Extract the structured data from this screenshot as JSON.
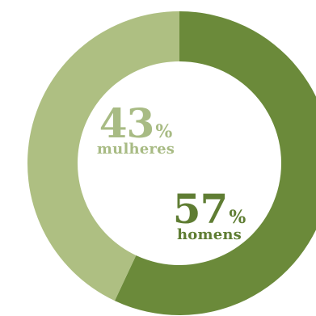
{
  "chart_data": {
    "type": "pie",
    "donut": true,
    "categories": [
      "homens",
      "mulheres"
    ],
    "values": [
      57,
      43
    ],
    "value_suffix": "%",
    "colors": [
      "#6b8a3a",
      "#aebf82"
    ],
    "text_colors": [
      "#5f7d33",
      "#a8bb84"
    ],
    "start_angle_deg": 0,
    "direction": "clockwise",
    "labels": [
      {
        "value": "57",
        "suffix": "%",
        "category": "homens"
      },
      {
        "value": "43",
        "suffix": "%",
        "category": "mulheres"
      }
    ]
  }
}
